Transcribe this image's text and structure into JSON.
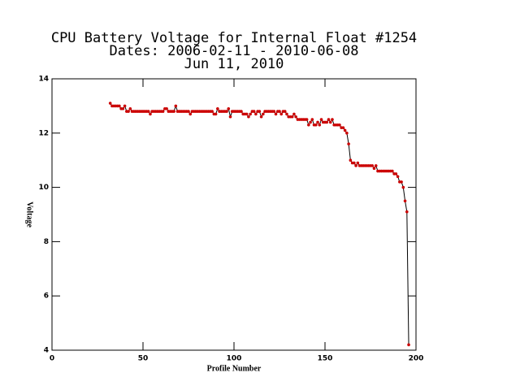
{
  "chart_data": {
    "type": "line",
    "title": [
      "CPU Battery Voltage for Internal Float #1254",
      "Dates:  2006-02-11 -  2010-06-08",
      "Jun 11, 2010"
    ],
    "x_label": "Profile Number",
    "y_label": "Voltage",
    "xlim": [
      0,
      200
    ],
    "xticks": [
      0,
      50,
      100,
      150,
      200
    ],
    "ylim": [
      4,
      14
    ],
    "yticks": [
      4,
      6,
      8,
      10,
      12,
      14
    ],
    "line_color": "#000000",
    "marker_color": "#cc0000",
    "x": [
      32,
      33,
      34,
      35,
      36,
      37,
      38,
      39,
      40,
      41,
      42,
      43,
      44,
      45,
      46,
      47,
      48,
      49,
      50,
      51,
      52,
      53,
      54,
      55,
      56,
      57,
      58,
      59,
      60,
      61,
      62,
      63,
      64,
      65,
      66,
      67,
      68,
      69,
      70,
      71,
      72,
      73,
      74,
      75,
      76,
      77,
      78,
      79,
      80,
      81,
      82,
      83,
      84,
      85,
      86,
      87,
      88,
      89,
      90,
      91,
      92,
      93,
      94,
      95,
      96,
      97,
      98,
      99,
      100,
      101,
      102,
      103,
      104,
      105,
      106,
      107,
      108,
      109,
      110,
      111,
      112,
      113,
      114,
      115,
      116,
      117,
      118,
      119,
      120,
      121,
      122,
      123,
      124,
      125,
      126,
      127,
      128,
      129,
      130,
      131,
      132,
      133,
      134,
      135,
      136,
      137,
      138,
      139,
      140,
      141,
      142,
      143,
      144,
      145,
      146,
      147,
      148,
      149,
      150,
      151,
      152,
      153,
      154,
      155,
      156,
      157,
      158,
      159,
      160,
      161,
      162,
      163,
      164,
      165,
      166,
      167,
      168,
      169,
      170,
      171,
      172,
      173,
      174,
      175,
      176,
      177,
      178,
      179,
      180,
      181,
      182,
      183,
      184,
      185,
      186,
      187,
      188,
      189,
      190,
      191,
      192,
      193,
      194,
      195,
      196
    ],
    "values": [
      13.1,
      13.0,
      13.0,
      13.0,
      13.0,
      13.0,
      12.9,
      12.9,
      13.0,
      12.8,
      12.8,
      12.9,
      12.8,
      12.8,
      12.8,
      12.8,
      12.8,
      12.8,
      12.8,
      12.8,
      12.8,
      12.8,
      12.7,
      12.8,
      12.8,
      12.8,
      12.8,
      12.8,
      12.8,
      12.8,
      12.9,
      12.9,
      12.8,
      12.8,
      12.8,
      12.8,
      13.0,
      12.8,
      12.8,
      12.8,
      12.8,
      12.8,
      12.8,
      12.8,
      12.7,
      12.8,
      12.8,
      12.8,
      12.8,
      12.8,
      12.8,
      12.8,
      12.8,
      12.8,
      12.8,
      12.8,
      12.8,
      12.7,
      12.7,
      12.9,
      12.8,
      12.8,
      12.8,
      12.8,
      12.8,
      12.9,
      12.6,
      12.8,
      12.8,
      12.8,
      12.8,
      12.8,
      12.8,
      12.7,
      12.7,
      12.7,
      12.6,
      12.7,
      12.8,
      12.8,
      12.7,
      12.8,
      12.8,
      12.6,
      12.7,
      12.8,
      12.8,
      12.8,
      12.8,
      12.8,
      12.8,
      12.7,
      12.8,
      12.8,
      12.7,
      12.8,
      12.8,
      12.7,
      12.6,
      12.6,
      12.6,
      12.7,
      12.6,
      12.5,
      12.5,
      12.5,
      12.5,
      12.5,
      12.5,
      12.3,
      12.4,
      12.5,
      12.3,
      12.3,
      12.4,
      12.3,
      12.5,
      12.4,
      12.4,
      12.4,
      12.5,
      12.4,
      12.5,
      12.3,
      12.3,
      12.3,
      12.3,
      12.2,
      12.2,
      12.1,
      12.0,
      11.6,
      11.0,
      10.9,
      10.9,
      10.8,
      10.9,
      10.8,
      10.8,
      10.8,
      10.8,
      10.8,
      10.8,
      10.8,
      10.8,
      10.7,
      10.8,
      10.6,
      10.6,
      10.6,
      10.6,
      10.6,
      10.6,
      10.6,
      10.6,
      10.6,
      10.5,
      10.5,
      10.4,
      10.2,
      10.2,
      10.0,
      9.5,
      9.1,
      4.2
    ]
  }
}
